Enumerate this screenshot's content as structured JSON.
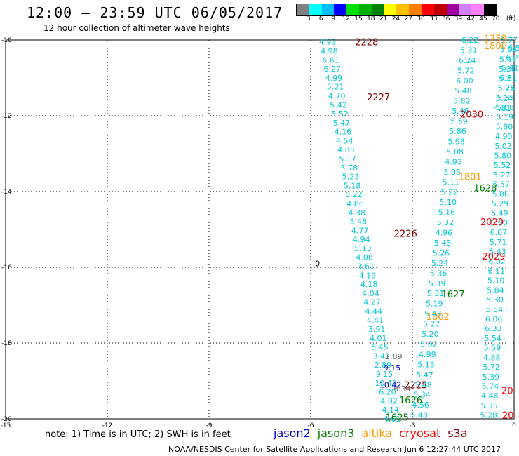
{
  "header": {
    "title": "12:00 – 23:59 UTC 06/05/2017",
    "subtitle": "12 hour collection of altimeter wave heights"
  },
  "scale": {
    "colors": [
      "#808080",
      "#00ffff",
      "#00bfff",
      "#0000ff",
      "#00e000",
      "#00b000",
      "#008000",
      "#ffff00",
      "#ffc000",
      "#ff8000",
      "#ff0000",
      "#c00000",
      "#a000a0",
      "#d080ff",
      "#ff80ff",
      "#000000"
    ],
    "labels": [
      "3",
      "6",
      "9",
      "12",
      "15",
      "18",
      "21",
      "24",
      "27",
      "30",
      "33",
      "36",
      "39",
      "42",
      "45",
      "70",
      "(ft)"
    ]
  },
  "axes": {
    "lon_ticks": [
      {
        "value": -15,
        "label": "-15"
      },
      {
        "value": -12,
        "label": "-12"
      },
      {
        "value": -9,
        "label": "-9"
      },
      {
        "value": -6,
        "label": "-6"
      },
      {
        "value": -3,
        "label": "-3"
      },
      {
        "value": 0,
        "label": "0"
      }
    ],
    "lat_ticks": [
      {
        "value": -10,
        "label": "-10"
      },
      {
        "value": -12,
        "label": "-12"
      },
      {
        "value": -14,
        "label": "-14"
      },
      {
        "value": -16,
        "label": "-16"
      },
      {
        "value": -18,
        "label": "-18"
      },
      {
        "value": -20,
        "label": "-20"
      }
    ],
    "lon_range": [
      -15,
      0
    ],
    "lat_range": [
      -20,
      -10
    ],
    "grid": true
  },
  "chart_data": {
    "type": "scatter",
    "x_label": "",
    "y_label": "",
    "track1": {
      "color": "#00c8d8",
      "lon_start": -5.5,
      "lat_start": -10.05,
      "lon_end": -3.6,
      "lat_end": -20.0,
      "values": [
        "4.93",
        "4.98",
        "6.61",
        "6.27",
        "4.99",
        "5.21",
        "4.70",
        "5.42",
        "5.52",
        "5.47",
        "4.16",
        "4.54",
        "4.85",
        "5.17",
        "5.78",
        "5.23",
        "5.18",
        "6.22",
        "4.86",
        "4.38",
        "5.48",
        "4.77",
        "4.94",
        "5.13",
        "4.08",
        "3.61",
        "4.19",
        "4.18",
        "4.04",
        "4.27",
        "4.44",
        "4.41",
        "3.91",
        "4.01",
        "5.45",
        "3.41",
        "2.89",
        "9.15",
        "10.42",
        "6.20",
        "4.02",
        "4.14",
        "4.61"
      ]
    },
    "track2": {
      "color": "#00c8d8",
      "lon_start": -1.3,
      "lat_start": -10.0,
      "lon_end": -2.8,
      "lat_end": -19.9,
      "values": [
        "6.22",
        "5.31",
        "6.24",
        "5.72",
        "6.00",
        "5.48",
        "5.82",
        "5.46",
        "5.59",
        "5.86",
        "5.98",
        "5.08",
        "4.93",
        "5.05",
        "5.11",
        "5.22",
        "5.10",
        "5.16",
        "5.32",
        "4.96",
        "5.43",
        "5.26",
        "5.24",
        "5.36",
        "5.39",
        "5.31",
        "5.19",
        "5.43",
        "5.27",
        "5.20",
        "5.02",
        "4.99",
        "5.13",
        "5.47",
        "5.48",
        "5.34",
        "4.56",
        "5.48"
      ]
    },
    "track3": {
      "color": "#00c8d8",
      "lon_start": -0.15,
      "lat_start": -10.0,
      "lon_end": -0.75,
      "lat_end": -19.9,
      "values": [
        "5.77",
        "5.06",
        "5.41",
        "5.30",
        "5.21",
        "5.25",
        "5.33",
        "5.08",
        "5.19",
        "5.80",
        "4.90",
        "5.02",
        "5.80",
        "5.52",
        "5.27",
        "5.57",
        "5.80",
        "5.29",
        "5.49",
        "5.60",
        "6.07",
        "5.71",
        "5.43",
        "6.02",
        "6.11",
        "5.10",
        "5.84",
        "5.30",
        "5.54",
        "6.06",
        "6.33",
        "5.54",
        "5.59",
        "4.88",
        "5.72",
        "5.39",
        "5.74",
        "4.46",
        "5.35",
        "5.28"
      ]
    },
    "track4": {
      "color": "#00c8d8",
      "lon_start": 0.0,
      "lat_start": -10.2,
      "lon_end": -0.35,
      "lat_end": -11.8,
      "values": [
        "6.5",
        "6.2",
        "5.41",
        "5.81",
        "5.72",
        "5.24",
        "4.81"
      ]
    },
    "time_labels": [
      {
        "text": "2228",
        "color": "#800000",
        "lon": -4.35,
        "lat": -10.05
      },
      {
        "text": "2227",
        "color": "#800000",
        "lon": -4.0,
        "lat": -11.5
      },
      {
        "text": "2226",
        "color": "#800000",
        "lon": -3.2,
        "lat": -15.1
      },
      {
        "text": "2225",
        "color": "#800000",
        "lon": -2.9,
        "lat": -19.1
      },
      {
        "text": "1759",
        "color": "#ff9900",
        "lon": -0.55,
        "lat": -9.95
      },
      {
        "text": "1800",
        "color": "#ff9900",
        "lon": -0.55,
        "lat": -10.15
      },
      {
        "text": "1801",
        "color": "#ff9900",
        "lon": -1.3,
        "lat": -13.6
      },
      {
        "text": "1802",
        "color": "#ff9900",
        "lon": -2.25,
        "lat": -17.3
      },
      {
        "text": "2030",
        "color": "#c00000",
        "lon": -1.25,
        "lat": -11.95
      },
      {
        "text": "2029",
        "color": "#ff0000",
        "lon": -0.65,
        "lat": -14.8
      },
      {
        "text": "2029",
        "color": "#ff0000",
        "lon": -0.6,
        "lat": -15.7
      },
      {
        "text": "1628",
        "color": "#008000",
        "lon": -0.85,
        "lat": -13.9
      },
      {
        "text": "1627",
        "color": "#008000",
        "lon": -1.8,
        "lat": -16.7
      },
      {
        "text": "1626",
        "color": "#008000",
        "lon": -3.05,
        "lat": -19.5
      },
      {
        "text": "1625",
        "color": "#008000",
        "lon": -3.45,
        "lat": -19.95
      },
      {
        "text": "20",
        "color": "#ff0000",
        "lon": -0.2,
        "lat": -19.25
      },
      {
        "text": "20",
        "color": "#ff0000",
        "lon": -0.18,
        "lat": -19.9
      }
    ],
    "extra_values": [
      {
        "text": "2.89",
        "color": "#707070",
        "lon": -3.55,
        "lat": -18.35
      },
      {
        "text": "9.15",
        "color": "#0000cc",
        "lon": -3.6,
        "lat": -18.65
      },
      {
        "text": "10.42",
        "color": "#0000cc",
        "lon": -3.65,
        "lat": -19.1
      },
      {
        "text": "6.34",
        "color": "#707070",
        "lon": -3.3,
        "lat": -19.2
      },
      {
        "text": "0",
        "color": "#000000",
        "lon": -5.8,
        "lat": -15.9
      }
    ]
  },
  "note": "note: 1) Time is in UTC; 2) SWH is in feet",
  "satellites": [
    {
      "name": "jason2",
      "color": "#0000cc"
    },
    {
      "name": "jason3",
      "color": "#008000"
    },
    {
      "name": "altika",
      "color": "#ff9900"
    },
    {
      "name": "cryosat",
      "color": "#ff0000"
    },
    {
      "name": "s3a",
      "color": "#800000"
    }
  ],
  "footer": "NOAA/NESDIS Center for Satellite Applications and Research   Jun  6 12:27:44 UTC 2017"
}
